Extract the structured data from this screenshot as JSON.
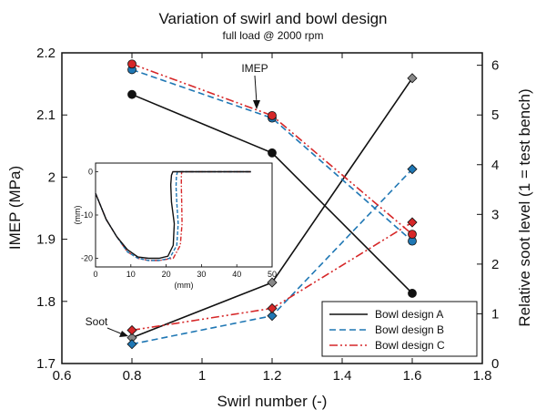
{
  "chart_data": {
    "type": "line",
    "title": "Variation of swirl and bowl design",
    "subtitle": "full load @ 2000 rpm",
    "xlabel": "Swirl number (-)",
    "ylabel_left": "IMEP (MPa)",
    "ylabel_right": "Relative soot level (1 = test bench)",
    "xlim": [
      0.6,
      1.8
    ],
    "ylim_left": [
      1.7,
      2.2
    ],
    "ylim_right": [
      0,
      6.25
    ],
    "x_ticks": [
      "0.6",
      "0.8",
      "1",
      "1.2",
      "1.4",
      "1.6",
      "1.8"
    ],
    "y_left_ticks": [
      "1.7",
      "1.8",
      "1.9",
      "2",
      "2.1",
      "2.2"
    ],
    "y_right_ticks": [
      "0",
      "1",
      "2",
      "3",
      "4",
      "5",
      "6"
    ],
    "legend_position": "bottom-right",
    "annotations": [
      "IMEP",
      "Soot"
    ],
    "series": [
      {
        "name": "Bowl design A",
        "color": "#111111",
        "dash": "solid",
        "imep": {
          "x": [
            0.8,
            1.2,
            1.6
          ],
          "y": [
            2.133,
            2.039,
            1.813
          ]
        },
        "soot": {
          "x": [
            0.8,
            1.2,
            1.6
          ],
          "y": [
            0.52,
            1.63,
            5.74
          ]
        }
      },
      {
        "name": "Bowl design B",
        "color": "#1f77b4",
        "dash": "dashed",
        "imep": {
          "x": [
            0.8,
            1.2,
            1.6
          ],
          "y": [
            2.173,
            2.095,
            1.897
          ]
        },
        "soot": {
          "x": [
            0.8,
            1.2,
            1.6
          ],
          "y": [
            0.39,
            0.96,
            3.91
          ]
        }
      },
      {
        "name": "Bowl design C",
        "color": "#d62728",
        "dash": "dashdot",
        "imep": {
          "x": [
            0.8,
            1.2,
            1.6
          ],
          "y": [
            2.182,
            2.099,
            1.908
          ]
        },
        "soot": {
          "x": [
            0.8,
            1.2,
            1.6
          ],
          "y": [
            0.67,
            1.11,
            2.84
          ]
        }
      }
    ],
    "inset": {
      "xlabel": "(mm)",
      "ylabel": "(mm)",
      "xlim": [
        0,
        50
      ],
      "ylim": [
        -22,
        2
      ],
      "x_ticks": [
        "0",
        "10",
        "20",
        "30",
        "40",
        "50"
      ],
      "y_ticks": [
        "0",
        "-10",
        "-20"
      ],
      "profiles": [
        {
          "series": "Bowl design A",
          "x": [
            0,
            1,
            3,
            6,
            9,
            12,
            15,
            18,
            20.5,
            22,
            22.3,
            21.5,
            21.3,
            21.5,
            21.9,
            22.6,
            44
          ],
          "y": [
            -5,
            -7,
            -11,
            -15,
            -18,
            -19.7,
            -20,
            -20,
            -19.5,
            -17,
            -12,
            -7,
            -3,
            -0.8,
            0,
            0,
            0
          ]
        },
        {
          "series": "Bowl design B",
          "x": [
            0,
            1,
            3,
            6,
            9,
            12,
            15,
            18,
            21,
            23,
            23.4,
            23,
            22.8,
            22.9,
            23.2,
            23.8,
            44
          ],
          "y": [
            -5,
            -7,
            -11,
            -15,
            -18.5,
            -20,
            -20.5,
            -20.5,
            -20,
            -17,
            -12,
            -7,
            -3.5,
            -1,
            0,
            0,
            0
          ]
        },
        {
          "series": "Bowl design C",
          "x": [
            0,
            1,
            3,
            6,
            9,
            12,
            15,
            18,
            22,
            24,
            24.5,
            24.4,
            24.3,
            24.3,
            24.4,
            25,
            44
          ],
          "y": [
            -5,
            -7,
            -11,
            -15,
            -18.5,
            -20,
            -20.5,
            -20.5,
            -20,
            -17,
            -12,
            -7,
            -3.5,
            -1,
            0,
            0,
            0
          ]
        }
      ]
    }
  }
}
